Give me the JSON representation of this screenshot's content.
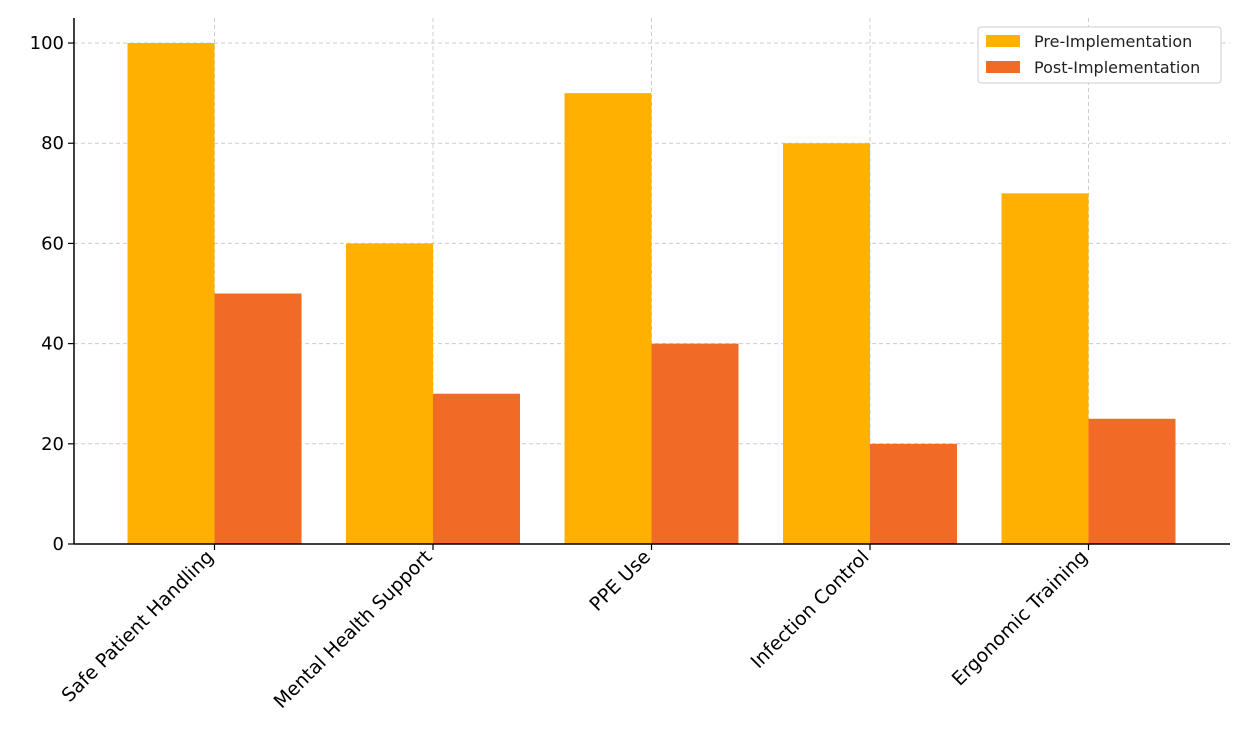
{
  "chart_data": {
    "type": "bar",
    "categories": [
      "Safe Patient Handling",
      "Mental Health Support",
      "PPE Use",
      "Infection Control",
      "Ergonomic Training"
    ],
    "series": [
      {
        "name": "Pre-Implementation",
        "values": [
          100,
          60,
          90,
          80,
          70
        ]
      },
      {
        "name": "Post-Implementation",
        "values": [
          50,
          30,
          40,
          20,
          25
        ]
      }
    ],
    "title": "",
    "xlabel": "",
    "ylabel": "",
    "ylim": [
      0,
      105
    ],
    "yticks": [
      0,
      20,
      40,
      60,
      80,
      100
    ],
    "grid": true,
    "legend": "top-right",
    "colors": {
      "pre": "#FFB000",
      "post": "#F26B26"
    }
  }
}
